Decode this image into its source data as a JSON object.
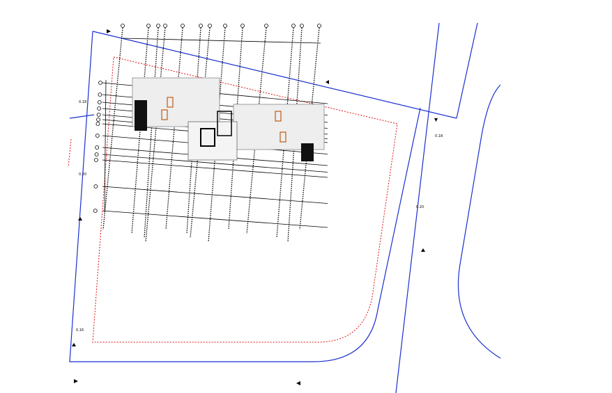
{
  "level_labels": [
    "0.18",
    "0.20",
    "0.16",
    "0.18",
    "0.20"
  ]
}
